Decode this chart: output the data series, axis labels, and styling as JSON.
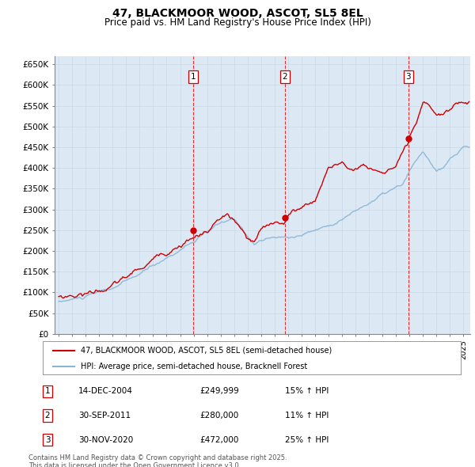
{
  "title": "47, BLACKMOOR WOOD, ASCOT, SL5 8EL",
  "subtitle": "Price paid vs. HM Land Registry's House Price Index (HPI)",
  "legend_line1": "47, BLACKMOOR WOOD, ASCOT, SL5 8EL (semi-detached house)",
  "legend_line2": "HPI: Average price, semi-detached house, Bracknell Forest",
  "transactions": [
    {
      "num": 1,
      "date": "14-DEC-2004",
      "price": 249999,
      "pct": "15%",
      "dir": "↑",
      "ref": "HPI"
    },
    {
      "num": 2,
      "date": "30-SEP-2011",
      "price": 280000,
      "pct": "11%",
      "dir": "↑",
      "ref": "HPI"
    },
    {
      "num": 3,
      "date": "30-NOV-2020",
      "price": 472000,
      "pct": "25%",
      "dir": "↑",
      "ref": "HPI"
    }
  ],
  "transaction_years": [
    2004.958,
    2011.75,
    2020.917
  ],
  "transaction_prices": [
    249999,
    280000,
    472000
  ],
  "footer": "Contains HM Land Registry data © Crown copyright and database right 2025.\nThis data is licensed under the Open Government Licence v3.0.",
  "hpi_color": "#8ab4d4",
  "price_color": "#cc0000",
  "vline_color": "#dd0000",
  "bg_color": "#dce9f5",
  "grid_color": "#c0d0e0",
  "outer_bg": "#f0f4f8",
  "ylim": [
    0,
    670000
  ],
  "yticks": [
    0,
    50000,
    100000,
    150000,
    200000,
    250000,
    300000,
    350000,
    400000,
    450000,
    500000,
    550000,
    600000,
    650000
  ],
  "xlim_start": 1994.7,
  "xlim_end": 2025.5
}
